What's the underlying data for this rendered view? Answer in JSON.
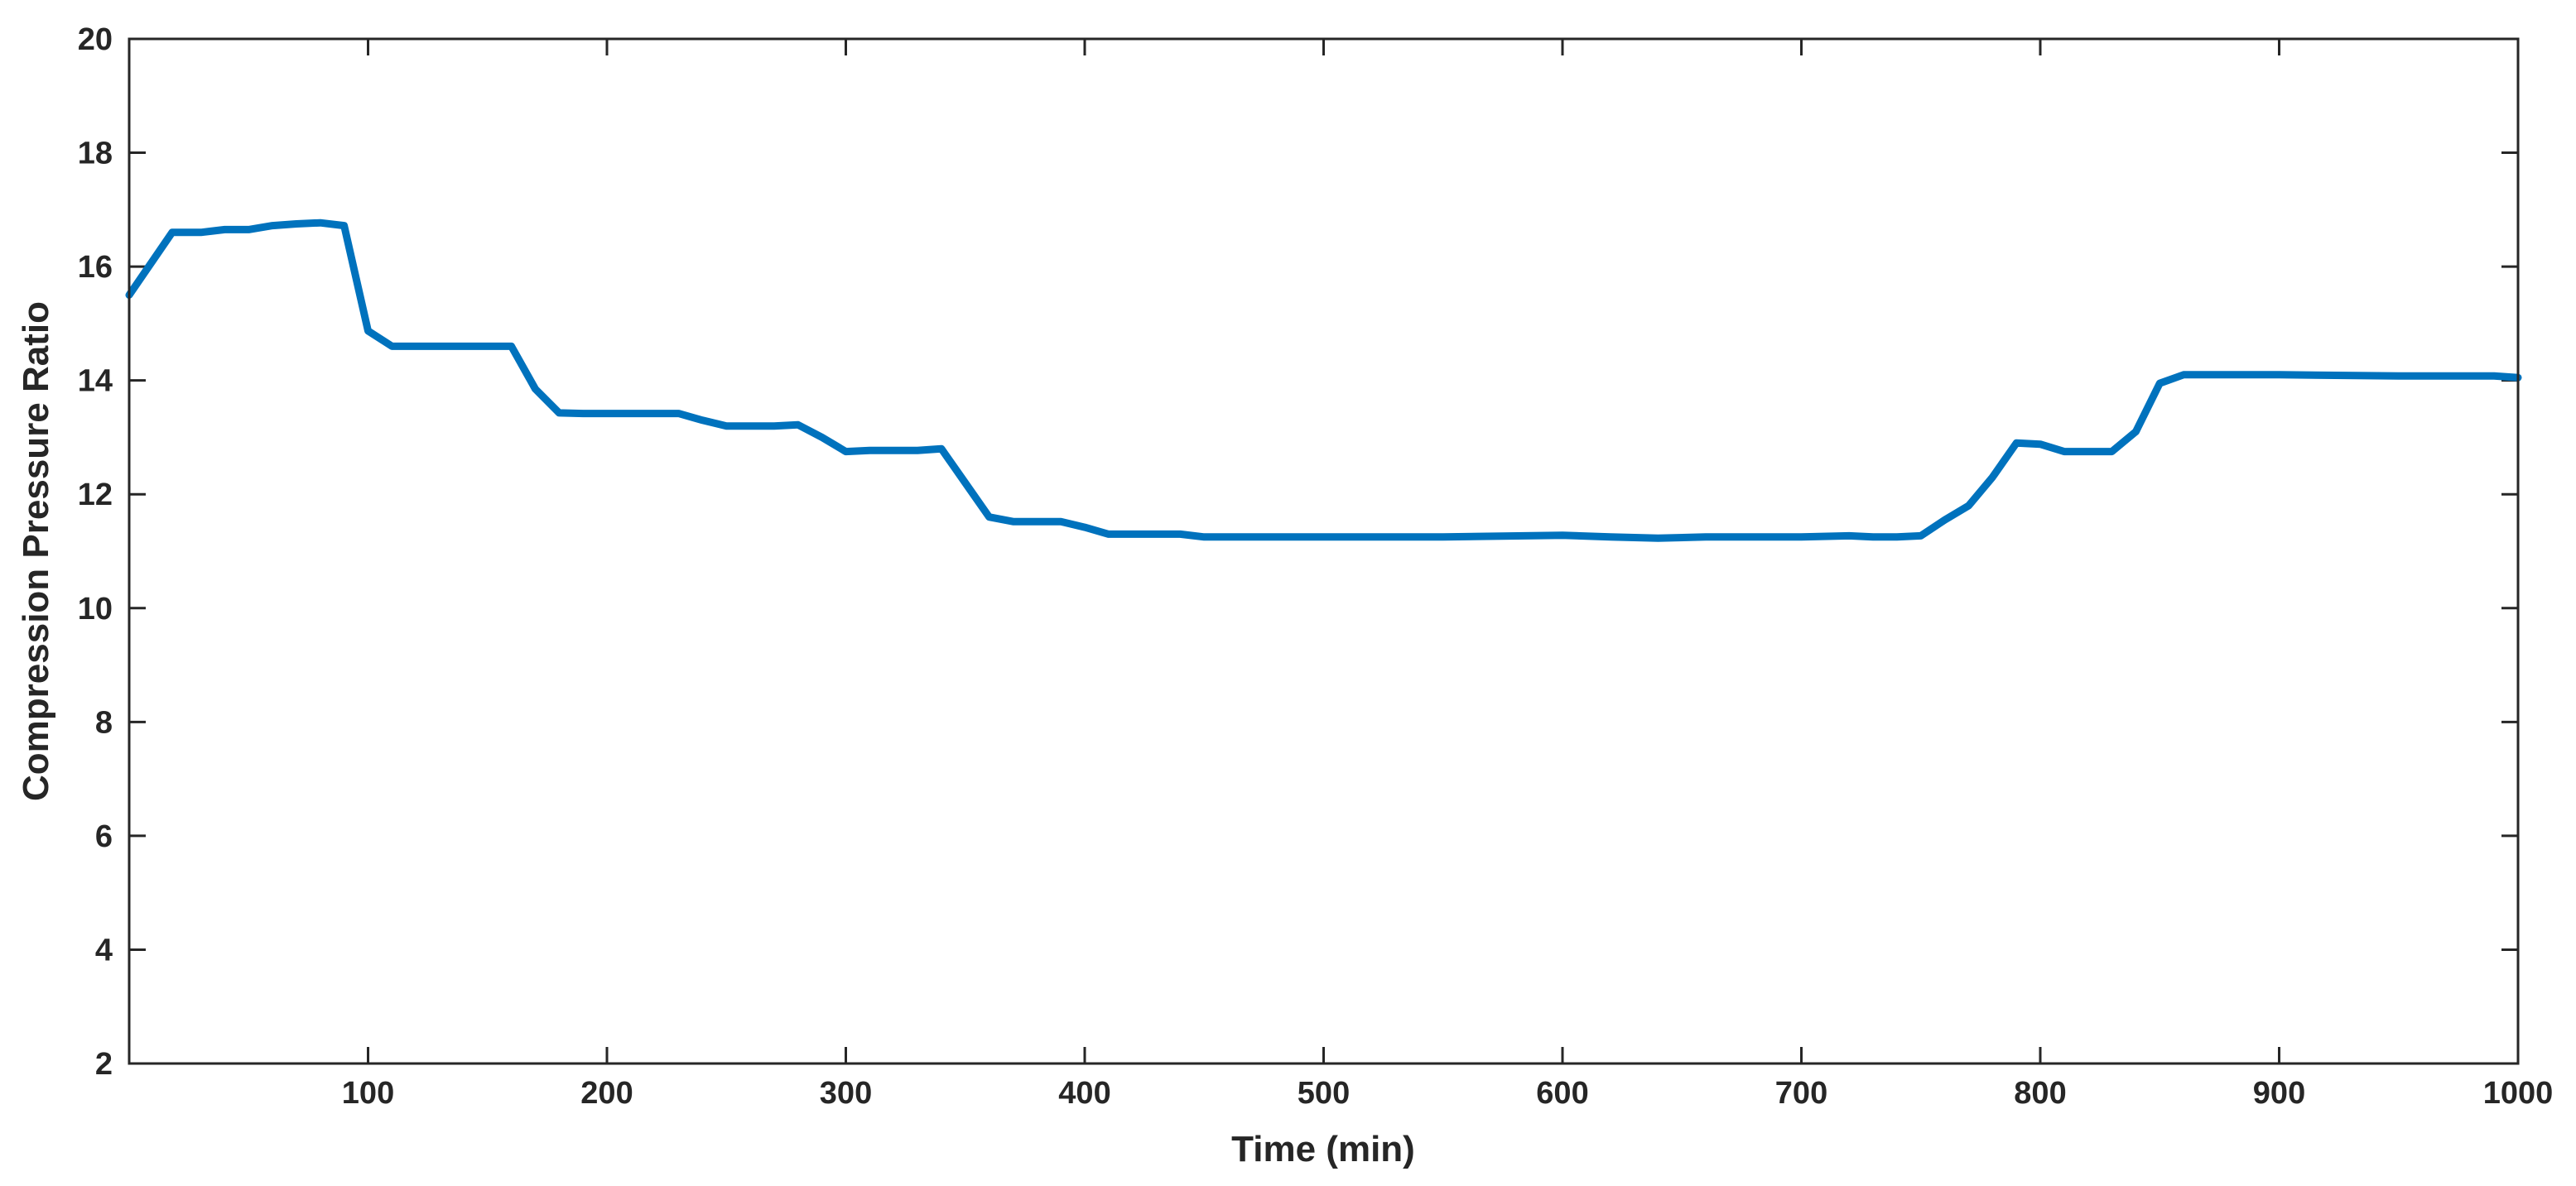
{
  "chart_data": {
    "type": "line",
    "title": "",
    "xlabel": "Time (min)",
    "ylabel": "Compression Pressure Ratio",
    "xlim": [
      0,
      1000
    ],
    "ylim": [
      2,
      20
    ],
    "xticks": [
      100,
      200,
      300,
      400,
      500,
      600,
      700,
      800,
      900,
      1000
    ],
    "yticks": [
      2,
      4,
      6,
      8,
      10,
      12,
      14,
      16,
      18,
      20
    ],
    "grid": false,
    "legend": "none",
    "line_color": "#0072BD",
    "series": [
      {
        "x": [
          0,
          18,
          30,
          40,
          50,
          60,
          70,
          80,
          90,
          100,
          110,
          120,
          130,
          140,
          150,
          160,
          170,
          180,
          190,
          200,
          210,
          220,
          230,
          240,
          250,
          260,
          270,
          280,
          290,
          300,
          310,
          320,
          330,
          340,
          350,
          360,
          370,
          380,
          390,
          400,
          410,
          420,
          430,
          440,
          450,
          460,
          470,
          480,
          490,
          500,
          550,
          600,
          620,
          640,
          660,
          700,
          720,
          730,
          740,
          750,
          760,
          770,
          780,
          790,
          800,
          810,
          820,
          830,
          840,
          850,
          860,
          900,
          950,
          990,
          1000
        ],
        "y": [
          15.5,
          16.6,
          16.6,
          16.65,
          16.65,
          16.72,
          16.75,
          16.77,
          16.72,
          14.87,
          14.6,
          14.6,
          14.6,
          14.6,
          14.6,
          14.6,
          13.85,
          13.43,
          13.42,
          13.42,
          13.42,
          13.42,
          13.42,
          13.3,
          13.2,
          13.2,
          13.2,
          13.22,
          13.0,
          12.75,
          12.77,
          12.77,
          12.77,
          12.8,
          12.2,
          11.6,
          11.52,
          11.52,
          11.52,
          11.42,
          11.3,
          11.3,
          11.3,
          11.3,
          11.25,
          11.25,
          11.25,
          11.25,
          11.25,
          11.25,
          11.25,
          11.28,
          11.25,
          11.23,
          11.25,
          11.25,
          11.27,
          11.25,
          11.25,
          11.27,
          11.55,
          11.8,
          12.3,
          12.9,
          12.88,
          12.75,
          12.75,
          12.75,
          13.1,
          13.95,
          14.1,
          14.1,
          14.08,
          14.08,
          14.05
        ]
      }
    ]
  }
}
